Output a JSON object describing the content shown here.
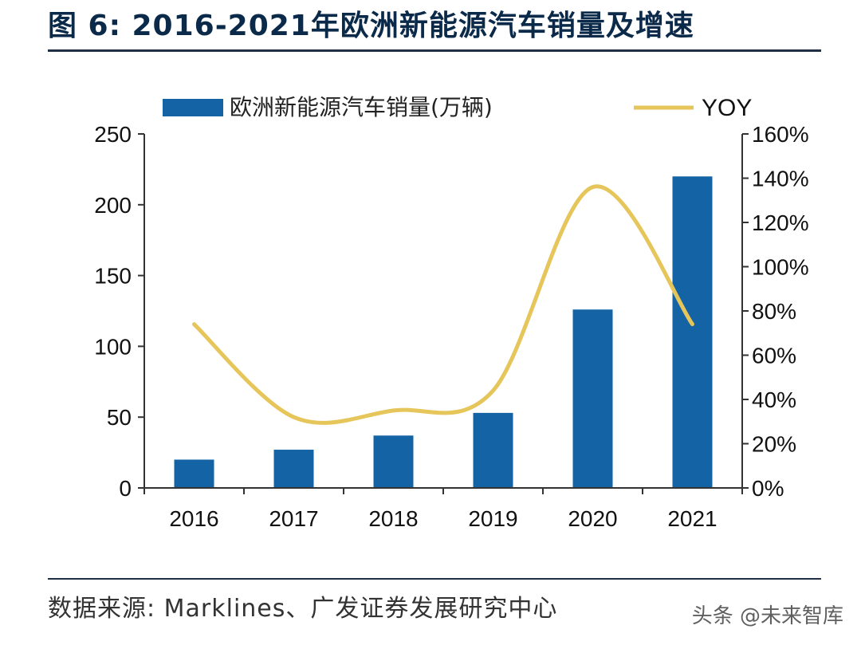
{
  "title": "图 6: 2016-2021年欧洲新能源汽车销量及增速",
  "source": "数据来源: Marklines、广发证券发展研究中心",
  "watermark": "头条 @未来智库",
  "colors": {
    "bar": "#1464a5",
    "line": "#e6c55a",
    "axis": "#333333",
    "title": "#0b2a4a"
  },
  "chart_data": {
    "type": "bar+line",
    "categories": [
      "2016",
      "2017",
      "2018",
      "2019",
      "2020",
      "2021"
    ],
    "series": [
      {
        "name": "欧洲新能源汽车销量(万辆)",
        "type": "bar",
        "axis": "left",
        "values": [
          20,
          27,
          37,
          53,
          126,
          220
        ]
      },
      {
        "name": "YOY",
        "type": "line",
        "axis": "right",
        "values": [
          74,
          32,
          35,
          44,
          136,
          74
        ]
      }
    ],
    "left_axis": {
      "ylim": [
        0,
        250
      ],
      "ticks": [
        "0",
        "50",
        "100",
        "150",
        "200",
        "250"
      ]
    },
    "right_axis": {
      "ylim": [
        0,
        160
      ],
      "ticks": [
        "0%",
        "20%",
        "40%",
        "60%",
        "80%",
        "100%",
        "120%",
        "140%",
        "160%"
      ]
    },
    "legend": {
      "bar_label": "欧洲新能源汽车销量(万辆)",
      "line_label": "YOY",
      "placement": "top"
    },
    "grid": false
  }
}
